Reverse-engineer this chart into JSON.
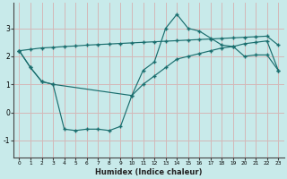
{
  "xlabel": "Humidex (Indice chaleur)",
  "bg_color": "#c8eaea",
  "grid_color": "#d4b8b8",
  "line_color": "#1a6e6e",
  "xlim": [
    -0.5,
    23.5
  ],
  "ylim": [
    -1.6,
    3.9
  ],
  "xticks": [
    0,
    1,
    2,
    3,
    4,
    5,
    6,
    7,
    8,
    9,
    10,
    11,
    12,
    13,
    14,
    15,
    16,
    17,
    18,
    19,
    20,
    21,
    22,
    23
  ],
  "yticks": [
    -1,
    0,
    1,
    2,
    3
  ],
  "line1_x": [
    0,
    1,
    2,
    3,
    4,
    5,
    6,
    7,
    8,
    9,
    10,
    11,
    12,
    13,
    14,
    15,
    16,
    17,
    18,
    19,
    20,
    21,
    22,
    23
  ],
  "line1_y": [
    2.2,
    2.25,
    2.3,
    2.32,
    2.35,
    2.37,
    2.4,
    2.42,
    2.44,
    2.46,
    2.48,
    2.5,
    2.52,
    2.54,
    2.56,
    2.58,
    2.6,
    2.62,
    2.64,
    2.66,
    2.68,
    2.7,
    2.72,
    2.4
  ],
  "line2_x": [
    0,
    1,
    2,
    3,
    10,
    11,
    12,
    13,
    14,
    15,
    16,
    17,
    18,
    19,
    20,
    21,
    22,
    23
  ],
  "line2_y": [
    2.2,
    1.6,
    1.1,
    1.0,
    0.6,
    1.5,
    1.8,
    3.0,
    3.5,
    3.0,
    2.9,
    2.65,
    2.4,
    2.35,
    2.0,
    2.05,
    2.05,
    1.5
  ],
  "line3_x": [
    0,
    1,
    2,
    3,
    4,
    5,
    6,
    7,
    8,
    9,
    10,
    11,
    12,
    13,
    14,
    15,
    16,
    17,
    18,
    19,
    20,
    21,
    22,
    23
  ],
  "line3_y": [
    2.2,
    1.6,
    1.1,
    1.0,
    -0.6,
    -0.65,
    -0.6,
    -0.6,
    -0.65,
    -0.5,
    0.6,
    1.0,
    1.3,
    1.6,
    1.9,
    2.0,
    2.1,
    2.2,
    2.3,
    2.35,
    2.45,
    2.5,
    2.55,
    1.5
  ]
}
